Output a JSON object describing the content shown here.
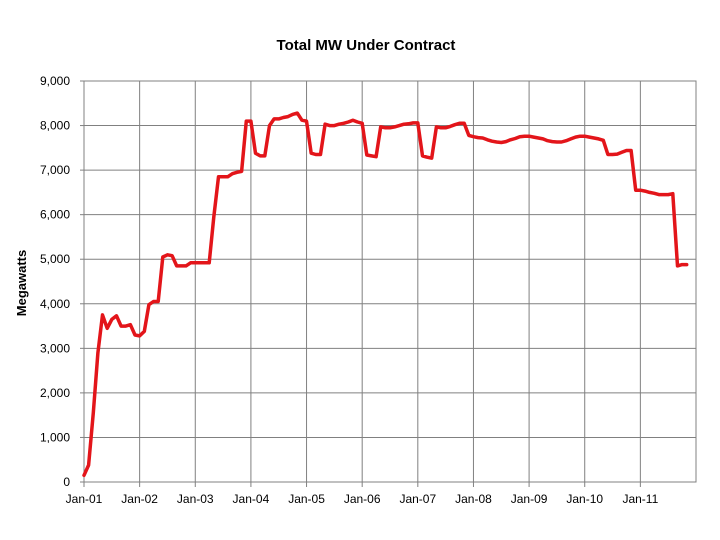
{
  "chart_data": {
    "type": "line",
    "title": "Total MW Under Contract",
    "xlabel": "",
    "ylabel": "Megawatts",
    "ylim": [
      0,
      9000
    ],
    "xlim": [
      "2001-01",
      "2011-12"
    ],
    "grid": true,
    "y_ticks": [
      "0",
      "1,000",
      "2,000",
      "3,000",
      "4,000",
      "5,000",
      "6,000",
      "7,000",
      "8,000",
      "9,000"
    ],
    "y_tick_values": [
      0,
      1000,
      2000,
      3000,
      4000,
      5000,
      6000,
      7000,
      8000,
      9000
    ],
    "x_ticks": [
      "Jan-01",
      "Jan-02",
      "Jan-03",
      "Jan-04",
      "Jan-05",
      "Jan-06",
      "Jan-07",
      "Jan-08",
      "Jan-09",
      "Jan-10",
      "Jan-11"
    ],
    "x_tick_values": [
      "2001-01",
      "2002-01",
      "2003-01",
      "2004-01",
      "2005-01",
      "2006-01",
      "2007-01",
      "2008-01",
      "2009-01",
      "2010-01",
      "2011-01"
    ],
    "series": [
      {
        "name": "",
        "color": "#e3151a",
        "points": [
          [
            "2001-01",
            150
          ],
          [
            "2001-02",
            380
          ],
          [
            "2001-03",
            1550
          ],
          [
            "2001-04",
            2900
          ],
          [
            "2001-05",
            3750
          ],
          [
            "2001-06",
            3450
          ],
          [
            "2001-07",
            3650
          ],
          [
            "2001-08",
            3730
          ],
          [
            "2001-09",
            3500
          ],
          [
            "2001-10",
            3500
          ],
          [
            "2001-11",
            3530
          ],
          [
            "2001-12",
            3300
          ],
          [
            "2002-01",
            3280
          ],
          [
            "2002-02",
            3380
          ],
          [
            "2002-03",
            3980
          ],
          [
            "2002-04",
            4050
          ],
          [
            "2002-05",
            4050
          ],
          [
            "2002-06",
            5050
          ],
          [
            "2002-07",
            5100
          ],
          [
            "2002-08",
            5080
          ],
          [
            "2002-09",
            4850
          ],
          [
            "2002-10",
            4850
          ],
          [
            "2002-11",
            4850
          ],
          [
            "2002-12",
            4920
          ],
          [
            "2003-01",
            4920
          ],
          [
            "2003-02",
            4920
          ],
          [
            "2003-03",
            4920
          ],
          [
            "2003-04",
            4920
          ],
          [
            "2003-05",
            5950
          ],
          [
            "2003-06",
            6850
          ],
          [
            "2003-07",
            6850
          ],
          [
            "2003-08",
            6850
          ],
          [
            "2003-09",
            6920
          ],
          [
            "2003-10",
            6950
          ],
          [
            "2003-11",
            6970
          ],
          [
            "2003-12",
            8100
          ],
          [
            "2004-01",
            8100
          ],
          [
            "2004-02",
            7380
          ],
          [
            "2004-03",
            7320
          ],
          [
            "2004-04",
            7320
          ],
          [
            "2004-05",
            8000
          ],
          [
            "2004-06",
            8150
          ],
          [
            "2004-07",
            8150
          ],
          [
            "2004-08",
            8180
          ],
          [
            "2004-09",
            8200
          ],
          [
            "2004-10",
            8250
          ],
          [
            "2004-11",
            8280
          ],
          [
            "2004-12",
            8120
          ],
          [
            "2005-01",
            8100
          ],
          [
            "2005-02",
            7380
          ],
          [
            "2005-03",
            7350
          ],
          [
            "2005-04",
            7350
          ],
          [
            "2005-05",
            8030
          ],
          [
            "2005-06",
            8000
          ],
          [
            "2005-07",
            8000
          ],
          [
            "2005-08",
            8030
          ],
          [
            "2005-09",
            8050
          ],
          [
            "2005-10",
            8080
          ],
          [
            "2005-11",
            8120
          ],
          [
            "2005-12",
            8080
          ],
          [
            "2006-01",
            8050
          ],
          [
            "2006-02",
            7340
          ],
          [
            "2006-03",
            7320
          ],
          [
            "2006-04",
            7300
          ],
          [
            "2006-05",
            7970
          ],
          [
            "2006-06",
            7950
          ],
          [
            "2006-07",
            7950
          ],
          [
            "2006-08",
            7970
          ],
          [
            "2006-09",
            8000
          ],
          [
            "2006-10",
            8030
          ],
          [
            "2006-11",
            8040
          ],
          [
            "2006-12",
            8060
          ],
          [
            "2007-01",
            8060
          ],
          [
            "2007-02",
            7320
          ],
          [
            "2007-03",
            7290
          ],
          [
            "2007-04",
            7270
          ],
          [
            "2007-05",
            7970
          ],
          [
            "2007-06",
            7950
          ],
          [
            "2007-07",
            7950
          ],
          [
            "2007-08",
            7980
          ],
          [
            "2007-09",
            8020
          ],
          [
            "2007-10",
            8050
          ],
          [
            "2007-11",
            8050
          ],
          [
            "2007-12",
            7780
          ],
          [
            "2008-01",
            7750
          ],
          [
            "2008-02",
            7730
          ],
          [
            "2008-03",
            7720
          ],
          [
            "2008-04",
            7680
          ],
          [
            "2008-05",
            7650
          ],
          [
            "2008-06",
            7630
          ],
          [
            "2008-07",
            7620
          ],
          [
            "2008-08",
            7640
          ],
          [
            "2008-09",
            7680
          ],
          [
            "2008-10",
            7710
          ],
          [
            "2008-11",
            7750
          ],
          [
            "2008-12",
            7760
          ],
          [
            "2009-01",
            7760
          ],
          [
            "2009-02",
            7740
          ],
          [
            "2009-03",
            7720
          ],
          [
            "2009-04",
            7700
          ],
          [
            "2009-05",
            7660
          ],
          [
            "2009-06",
            7640
          ],
          [
            "2009-07",
            7630
          ],
          [
            "2009-08",
            7630
          ],
          [
            "2009-09",
            7660
          ],
          [
            "2009-10",
            7700
          ],
          [
            "2009-11",
            7740
          ],
          [
            "2009-12",
            7760
          ],
          [
            "2010-01",
            7760
          ],
          [
            "2010-02",
            7740
          ],
          [
            "2010-03",
            7720
          ],
          [
            "2010-04",
            7700
          ],
          [
            "2010-05",
            7670
          ],
          [
            "2010-06",
            7350
          ],
          [
            "2010-07",
            7350
          ],
          [
            "2010-08",
            7360
          ],
          [
            "2010-09",
            7400
          ],
          [
            "2010-10",
            7440
          ],
          [
            "2010-11",
            7440
          ],
          [
            "2010-12",
            6550
          ],
          [
            "2011-01",
            6550
          ],
          [
            "2011-02",
            6530
          ],
          [
            "2011-03",
            6500
          ],
          [
            "2011-04",
            6480
          ],
          [
            "2011-05",
            6450
          ],
          [
            "2011-06",
            6450
          ],
          [
            "2011-07",
            6450
          ],
          [
            "2011-08",
            6470
          ],
          [
            "2011-09",
            4850
          ],
          [
            "2011-10",
            4880
          ],
          [
            "2011-11",
            4880
          ]
        ]
      }
    ]
  }
}
